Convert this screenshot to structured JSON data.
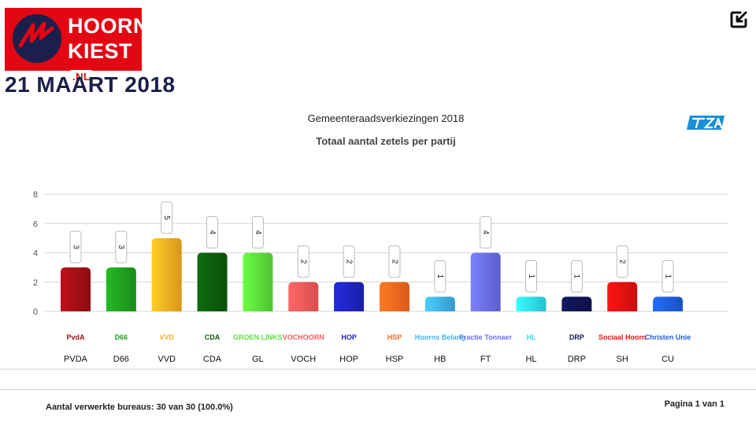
{
  "brand": {
    "name_line1": "HOORN",
    "name_line2": "KIEST",
    "domain_badge": ".NL",
    "date": "21 MAART 2018"
  },
  "corner_icon": "checkbox-arrow-icon",
  "chart_data": {
    "type": "bar",
    "title": "Gemeenteraadsverkiezingen 2018",
    "subtitle": "Totaal aantal zetels per partij",
    "categories": [
      "PVDA",
      "D66",
      "VVD",
      "CDA",
      "GL",
      "VOCH",
      "HOP",
      "HSP",
      "HB",
      "FT",
      "HL",
      "DRP",
      "SH",
      "CU"
    ],
    "values": [
      3,
      3,
      5,
      4,
      4,
      2,
      2,
      2,
      1,
      4,
      1,
      1,
      2,
      1
    ],
    "colors": [
      "#a50f15",
      "#1fa31f",
      "#ffb21e",
      "#0b5e0b",
      "#5de33a",
      "#ff5a5a",
      "#1f24c4",
      "#ff6a1f",
      "#3fb3f0",
      "#6b70f2",
      "#2ee2f5",
      "#101455",
      "#ee1111",
      "#1f5fe0"
    ],
    "ylim": [
      0,
      8
    ],
    "yticks": [
      0,
      2,
      4,
      6,
      8
    ],
    "grid": true,
    "data_labels": true
  },
  "party_logos": [
    "PvdA",
    "D66",
    "VVD",
    "CDA",
    "GROEN LINKS",
    "VOCHOORN",
    "HOP",
    "HSP",
    "Hoorns Belang",
    "Fractie Tonnaer",
    "HL",
    "DRP",
    "Sociaal Hoorn",
    "Christen Unie"
  ],
  "footer": {
    "bureaus_text": "Aantal verwerkte bureaus: 30 van 30 (100.0%)",
    "page_text": "Pagina 1 van 1"
  }
}
